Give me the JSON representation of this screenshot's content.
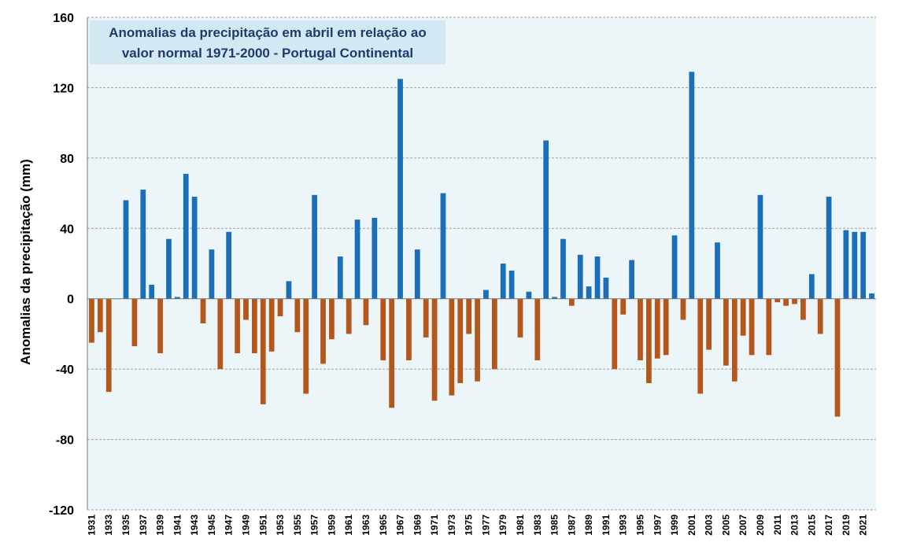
{
  "chart_data": {
    "type": "bar",
    "title_lines": [
      "Anomalias da precipitação em abril em relação ao",
      "valor normal  1971-2000 - Portugal Continental"
    ],
    "xlabel": "",
    "ylabel": "Anomalias da precipitação (mm)",
    "ylim": [
      -120,
      160
    ],
    "yticks": [
      160,
      120,
      80,
      40,
      0,
      -40,
      -80,
      -120
    ],
    "grid": "horizontal dashed",
    "x": [
      1931,
      1932,
      1933,
      1934,
      1935,
      1936,
      1937,
      1938,
      1939,
      1940,
      1941,
      1942,
      1943,
      1944,
      1945,
      1946,
      1947,
      1948,
      1949,
      1950,
      1951,
      1952,
      1953,
      1954,
      1955,
      1956,
      1957,
      1958,
      1959,
      1960,
      1961,
      1962,
      1963,
      1964,
      1965,
      1966,
      1967,
      1968,
      1969,
      1970,
      1971,
      1972,
      1973,
      1974,
      1975,
      1976,
      1977,
      1978,
      1979,
      1980,
      1981,
      1982,
      1983,
      1984,
      1985,
      1986,
      1987,
      1988,
      1989,
      1990,
      1991,
      1992,
      1993,
      1994,
      1995,
      1996,
      1997,
      1998,
      1999,
      2000,
      2001,
      2002,
      2003,
      2004,
      2005,
      2006,
      2007,
      2008,
      2009,
      2010,
      2011,
      2012,
      2013,
      2014,
      2015,
      2016,
      2017,
      2018,
      2019,
      2020,
      2021,
      2022
    ],
    "xtick_labels": [
      "1931",
      "1933",
      "1935",
      "1937",
      "1939",
      "1941",
      "1943",
      "1945",
      "1947",
      "1949",
      "1951",
      "1953",
      "1955",
      "1957",
      "1959",
      "1961",
      "1963",
      "1965",
      "1967",
      "1969",
      "1971",
      "1973",
      "1975",
      "1977",
      "1979",
      "1981",
      "1983",
      "1985",
      "1987",
      "1989",
      "1991",
      "1993",
      "1995",
      "1997",
      "1999",
      "2001",
      "2003",
      "2005",
      "2007",
      "2009",
      "2011",
      "2013",
      "2015",
      "2017",
      "2019",
      "2021"
    ],
    "values": [
      -25,
      -19,
      -53,
      0,
      56,
      -27,
      62,
      8,
      -31,
      34,
      1,
      71,
      58,
      -14,
      28,
      -40,
      38,
      -31,
      -12,
      -31,
      -60,
      -30,
      -10,
      10,
      -19,
      -54,
      59,
      -37,
      -23,
      24,
      -20,
      45,
      -15,
      46,
      -35,
      -62,
      125,
      -35,
      28,
      -22,
      -58,
      60,
      -55,
      -48,
      -20,
      -47,
      5,
      -40,
      20,
      16,
      -22,
      4,
      -35,
      90,
      1,
      34,
      -4,
      25,
      7,
      24,
      12,
      -40,
      -9,
      22,
      -35,
      -48,
      -34,
      -32,
      36,
      -12,
      129,
      -54,
      -29,
      32,
      -38,
      -47,
      -21,
      -32,
      59,
      -32,
      -2,
      -4,
      -3,
      -12,
      14,
      -20,
      58,
      -67,
      39,
      38,
      38,
      3
    ],
    "positive_color": "#1a6fb8",
    "negative_color": "#b5571b",
    "plot_background": "#ecf5f8",
    "title_background": "#d2e8f3",
    "title_color": "#1f3a6b"
  }
}
